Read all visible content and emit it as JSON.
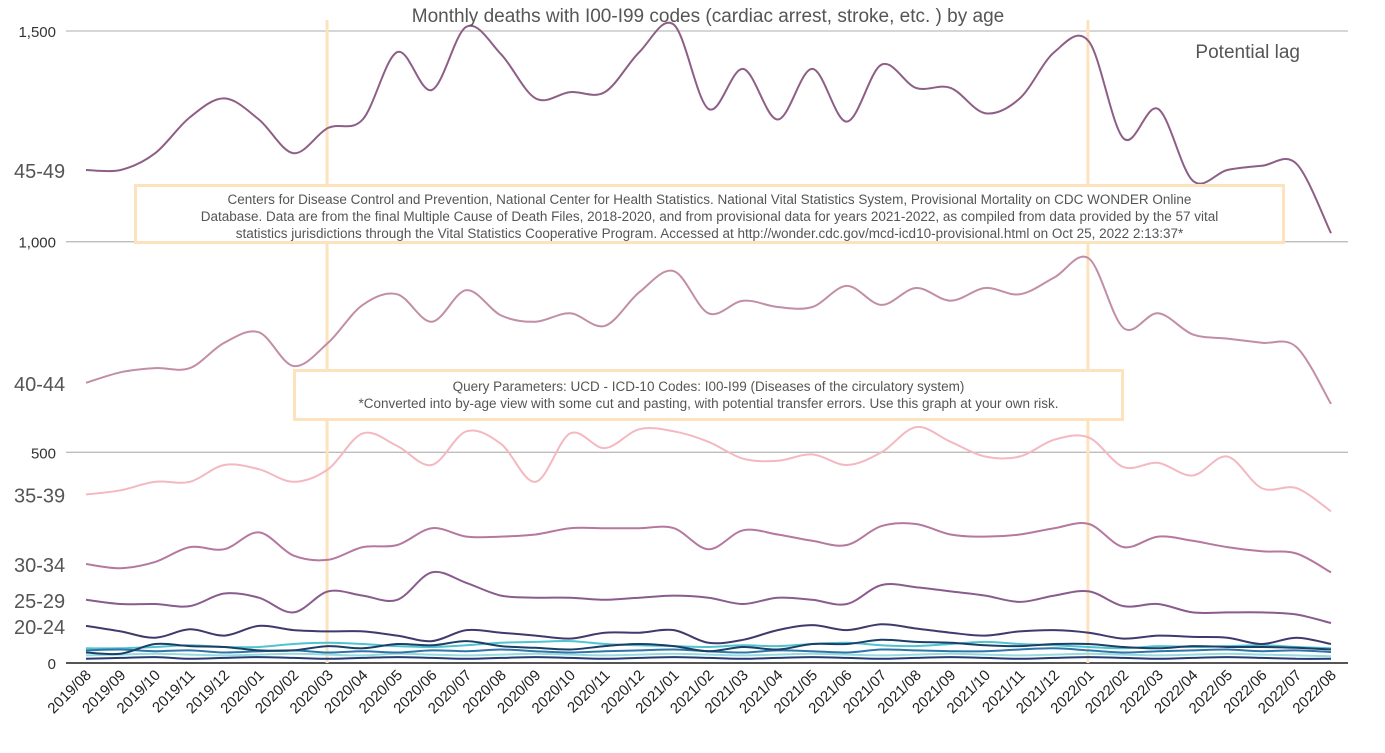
{
  "chart_data": {
    "type": "line",
    "title": "Monthly deaths with I00-I99 codes (cardiac arrest, stroke, etc. ) by age",
    "y_ticks": [
      "1,500",
      "1,000",
      "500",
      "0"
    ],
    "ylim": [
      0,
      1500
    ],
    "grid": "horizontal lines at 0, 500, 1,000 and 1,500",
    "lag_label": "Potential lag",
    "marker_lines_at": [
      "2020/03",
      "2022/01"
    ],
    "categories": [
      "2019/08",
      "2019/09",
      "2019/10",
      "2019/11",
      "2019/12",
      "2020/01",
      "2020/02",
      "2020/03",
      "2020/04",
      "2020/05",
      "2020/06",
      "2020/07",
      "2020/08",
      "2020/09",
      "2020/10",
      "2020/11",
      "2020/12",
      "2021/01",
      "2021/02",
      "2021/03",
      "2021/04",
      "2021/05",
      "2021/06",
      "2021/07",
      "2021/08",
      "2021/09",
      "2021/10",
      "2021/11",
      "2021/12",
      "2022/01",
      "2022/02",
      "2022/03",
      "2022/04",
      "2022/05",
      "2022/06",
      "2022/07",
      "2022/08"
    ],
    "series": [
      {
        "name": "45-49",
        "color": "#8e5f86",
        "values": [
          1170,
          1170,
          1210,
          1295,
          1340,
          1290,
          1210,
          1270,
          1290,
          1450,
          1360,
          1510,
          1445,
          1340,
          1355,
          1355,
          1450,
          1515,
          1315,
          1410,
          1290,
          1410,
          1285,
          1420,
          1365,
          1365,
          1305,
          1340,
          1450,
          1475,
          1245,
          1315,
          1145,
          1170,
          1180,
          1185,
          1020
        ]
      },
      {
        "name": "40-44",
        "color": "#c28ea6",
        "values": [
          665,
          690,
          700,
          700,
          760,
          785,
          705,
          760,
          850,
          875,
          810,
          885,
          825,
          810,
          830,
          800,
          880,
          930,
          830,
          860,
          845,
          845,
          895,
          850,
          890,
          860,
          890,
          875,
          915,
          960,
          795,
          830,
          780,
          770,
          760,
          750,
          615
        ]
      },
      {
        "name": "35-39",
        "color": "#f4b8c0",
        "values": [
          400,
          410,
          430,
          430,
          470,
          460,
          430,
          460,
          545,
          515,
          470,
          550,
          520,
          430,
          545,
          510,
          555,
          550,
          525,
          485,
          480,
          495,
          470,
          500,
          560,
          525,
          490,
          490,
          530,
          535,
          465,
          475,
          445,
          490,
          415,
          415,
          360
        ]
      },
      {
        "name": "30-34",
        "color": "#b5789f",
        "values": [
          235,
          225,
          240,
          275,
          270,
          310,
          255,
          245,
          275,
          280,
          320,
          300,
          300,
          305,
          320,
          320,
          320,
          320,
          270,
          315,
          305,
          290,
          280,
          325,
          330,
          305,
          300,
          305,
          320,
          330,
          275,
          300,
          290,
          275,
          265,
          260,
          215
        ]
      },
      {
        "name": "25-29",
        "color": "#8a5b8e",
        "values": [
          150,
          140,
          140,
          135,
          165,
          155,
          120,
          170,
          160,
          150,
          215,
          190,
          160,
          155,
          155,
          150,
          155,
          160,
          155,
          140,
          155,
          150,
          140,
          185,
          180,
          170,
          160,
          145,
          160,
          170,
          135,
          140,
          120,
          120,
          120,
          115,
          95
        ]
      },
      {
        "name": "20-24",
        "color": "#3e3a6c",
        "values": [
          88,
          75,
          60,
          80,
          65,
          88,
          78,
          75,
          75,
          65,
          52,
          78,
          72,
          65,
          58,
          72,
          72,
          78,
          48,
          55,
          78,
          90,
          78,
          92,
          82,
          72,
          65,
          75,
          78,
          72,
          58,
          65,
          62,
          60,
          45,
          60,
          45
        ]
      },
      {
        "name": "",
        "color": "#1b3f66",
        "values": [
          25,
          22,
          45,
          40,
          38,
          30,
          30,
          40,
          35,
          45,
          42,
          52,
          40,
          36,
          32,
          40,
          45,
          40,
          28,
          38,
          32,
          45,
          45,
          55,
          50,
          48,
          42,
          40,
          45,
          45,
          38,
          35,
          40,
          38,
          38,
          36,
          32
        ]
      },
      {
        "name": "",
        "color": "#2f75a8",
        "values": [
          30,
          32,
          28,
          30,
          25,
          28,
          30,
          25,
          28,
          25,
          30,
          28,
          32,
          28,
          25,
          28,
          30,
          32,
          28,
          25,
          30,
          28,
          25,
          32,
          30,
          28,
          28,
          32,
          35,
          30,
          25,
          28,
          30,
          32,
          28,
          30,
          26
        ]
      },
      {
        "name": "",
        "color": "#4fc4cf",
        "values": [
          35,
          35,
          38,
          42,
          38,
          38,
          45,
          48,
          45,
          40,
          38,
          42,
          48,
          50,
          52,
          45,
          42,
          40,
          38,
          42,
          40,
          45,
          48,
          42,
          40,
          45,
          50,
          45,
          42,
          38,
          35,
          40,
          38,
          40,
          42,
          38,
          35
        ]
      },
      {
        "name": "",
        "color": "#97dbe0",
        "values": [
          18,
          20,
          22,
          20,
          18,
          20,
          22,
          20,
          18,
          22,
          20,
          18,
          20,
          22,
          20,
          18,
          20,
          22,
          20,
          18,
          20,
          22,
          20,
          18,
          20,
          22,
          20,
          18,
          20,
          22,
          20,
          18,
          20,
          22,
          20,
          18,
          16
        ]
      },
      {
        "name": "",
        "color": "#233c73",
        "values": [
          10,
          12,
          14,
          10,
          12,
          14,
          12,
          10,
          12,
          14,
          12,
          10,
          12,
          14,
          12,
          10,
          12,
          14,
          12,
          10,
          12,
          14,
          12,
          10,
          12,
          14,
          12,
          10,
          12,
          14,
          12,
          10,
          12,
          14,
          12,
          10,
          10
        ]
      }
    ]
  },
  "notes": {
    "source": [
      "Centers for Disease Control and Prevention, National Center for Health Statistics. National Vital Statistics System, Provisional Mortality on CDC WONDER Online",
      "Database. Data are from the final Multiple Cause of Death Files, 2018-2020, and from provisional data for years 2021-2022, as compiled from data provided by the 57 vital",
      "statistics jurisdictions through the Vital Statistics Cooperative Program. Accessed at http://wonder.cdc.gov/mcd-icd10-provisional.html on Oct 25, 2022 2:13:37*"
    ],
    "query": [
      "Query Parameters: UCD - ICD-10 Codes: I00-I99 (Diseases of the circulatory system)",
      "*Converted into by-age view with some cut and pasting, with potential transfer errors. Use this graph at your own risk."
    ]
  }
}
